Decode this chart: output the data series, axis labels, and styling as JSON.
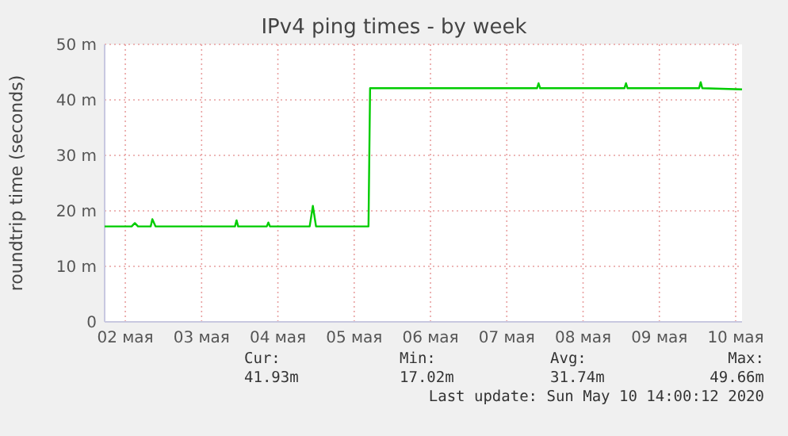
{
  "chart_data": {
    "type": "line",
    "title": "IPv4 ping times - by week",
    "ylabel": "roundtrip time (seconds)",
    "x": [
      "2020-05-02T05:30",
      "2020-05-02T14:00",
      "2020-05-02T15:00",
      "2020-05-02T16:00",
      "2020-05-02T20:00",
      "2020-05-02T20:30",
      "2020-05-02T21:30",
      "2020-05-03T22:30",
      "2020-05-03T23:00",
      "2020-05-03T23:30",
      "2020-05-04T08:30",
      "2020-05-04T09:00",
      "2020-05-04T09:30",
      "2020-05-04T22:00",
      "2020-05-04T23:00",
      "2020-05-05T00:00",
      "2020-05-05T16:30",
      "2020-05-05T17:00",
      "2020-05-07T21:30",
      "2020-05-07T22:00",
      "2020-05-07T22:30",
      "2020-05-09T01:00",
      "2020-05-09T01:30",
      "2020-05-09T02:00",
      "2020-05-10T00:30",
      "2020-05-10T01:00",
      "2020-05-10T01:30",
      "2020-05-10T14:00"
    ],
    "series": [
      {
        "color": "#00cc00",
        "values": [
          17.2,
          17.2,
          17.8,
          17.2,
          17.2,
          18.5,
          17.2,
          17.2,
          18.3,
          17.2,
          17.2,
          17.9,
          17.2,
          17.2,
          20.9,
          17.2,
          17.2,
          42.1,
          42.1,
          43.0,
          42.1,
          42.1,
          43.0,
          42.1,
          42.1,
          43.2,
          42.1,
          41.9
        ]
      }
    ],
    "xlim": [
      "2020-05-02T05:30",
      "2020-05-10T14:00"
    ],
    "xticks": [
      {
        "value": "2020-05-02T12:00",
        "label": "02 мая"
      },
      {
        "value": "2020-05-03T12:00",
        "label": "03 мая"
      },
      {
        "value": "2020-05-04T12:00",
        "label": "04 мая"
      },
      {
        "value": "2020-05-05T12:00",
        "label": "05 мая"
      },
      {
        "value": "2020-05-06T12:00",
        "label": "06 мая"
      },
      {
        "value": "2020-05-07T12:00",
        "label": "07 мая"
      },
      {
        "value": "2020-05-08T12:00",
        "label": "08 мая"
      },
      {
        "value": "2020-05-09T12:00",
        "label": "09 мая"
      },
      {
        "value": "2020-05-10T12:00",
        "label": "10 мая"
      }
    ],
    "ylim": [
      0,
      50
    ],
    "yticks": [
      0,
      {
        "value": 10,
        "label": "10 m"
      },
      {
        "value": 20,
        "label": "20 m"
      },
      {
        "value": 30,
        "label": "30 m"
      },
      {
        "value": 40,
        "label": "40 m"
      },
      {
        "value": 50,
        "label": "50 m"
      }
    ],
    "grid": true,
    "annotations": [
      "Cur:",
      "Min:",
      "Avg:",
      "Max:",
      "41.93m",
      "17.02m",
      "31.74m",
      "49.66m",
      "Last update: Sun May 10 14:00:12 2020"
    ]
  }
}
